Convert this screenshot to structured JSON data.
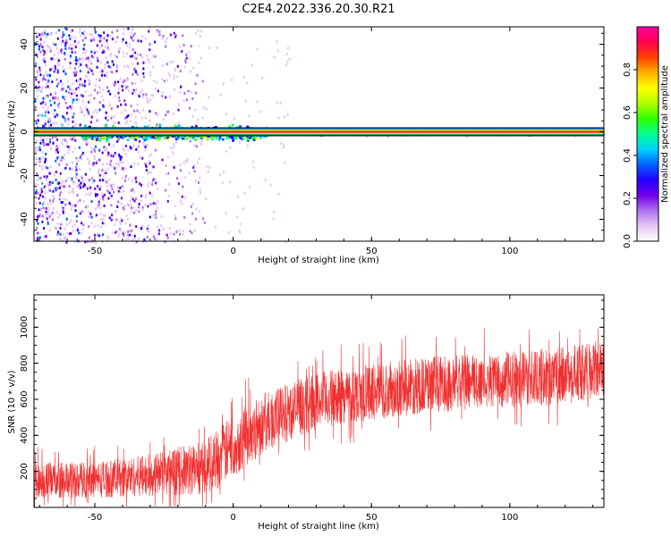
{
  "figure_title": "C2E4.2022.336.20.30.R21",
  "chart_data": [
    {
      "type": "heatmap",
      "title": "",
      "xlabel": "Height of straight line (km)",
      "ylabel": "Frequency (Hz)",
      "xlim": [
        -72,
        134
      ],
      "ylim": [
        -50,
        48
      ],
      "xticks": [
        -50,
        0,
        50,
        100
      ],
      "yticks": [
        -40,
        -20,
        0,
        20,
        40
      ],
      "colorbar": {
        "label": "Normalized spectral amplitude",
        "range": [
          0.0,
          1.0
        ],
        "ticks": [
          0.0,
          0.2,
          0.4,
          0.6,
          0.8
        ],
        "colormap": [
          "#ffffff",
          "#e6c8f5",
          "#b070f0",
          "#7000e8",
          "#2000ff",
          "#0060ff",
          "#00d0ff",
          "#00ff90",
          "#30ff00",
          "#b0ff00",
          "#ffff00",
          "#ffb000",
          "#ff4000",
          "#ff0050",
          "#ff00a0"
        ]
      },
      "features": [
        {
          "name": "carrier",
          "frequency": 0,
          "x_range": [
            -72,
            134
          ],
          "amplitude_range": [
            0.85,
            1.0
          ]
        },
        {
          "name": "broadband_noise",
          "x_range": [
            -72,
            -10
          ],
          "amplitude_range": [
            0.05,
            0.4
          ]
        },
        {
          "name": "near_carrier_scatter",
          "x_range": [
            -55,
            12
          ],
          "frequency_halfwidth": 3,
          "amplitude_range": [
            0.3,
            0.6
          ]
        }
      ]
    },
    {
      "type": "line",
      "title": "",
      "xlabel": "Height of straight line (km)",
      "ylabel": "SNR (10 * v/v)",
      "xlim": [
        -72,
        134
      ],
      "ylim": [
        0,
        1180
      ],
      "xticks": [
        -50,
        0,
        50,
        100
      ],
      "yticks": [
        200,
        400,
        600,
        800,
        1000
      ],
      "series": [
        {
          "color": "#f03030",
          "x": [
            -72,
            -60,
            -50,
            -40,
            -30,
            -20,
            -15,
            -10,
            -5,
            0,
            5,
            10,
            20,
            30,
            40,
            50,
            60,
            70,
            80,
            90,
            100,
            110,
            120,
            130,
            134
          ],
          "mean": [
            150,
            150,
            155,
            165,
            180,
            200,
            210,
            230,
            280,
            340,
            400,
            460,
            530,
            590,
            620,
            640,
            660,
            680,
            690,
            700,
            710,
            720,
            730,
            760,
            770
          ],
          "spread": [
            110,
            110,
            115,
            120,
            130,
            150,
            160,
            170,
            190,
            190,
            190,
            185,
            180,
            175,
            175,
            175,
            175,
            175,
            175,
            175,
            175,
            175,
            180,
            180,
            180
          ]
        }
      ]
    }
  ]
}
